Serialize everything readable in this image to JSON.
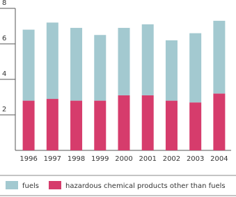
{
  "chart_data": {
    "type": "stacked_bar",
    "categories": [
      "1996",
      "1997",
      "1998",
      "1999",
      "2000",
      "2001",
      "2002",
      "2003",
      "2004"
    ],
    "series": [
      {
        "name": "hazardous chemical products other than fuels",
        "color": "#d63c6c",
        "values": [
          2.8,
          2.9,
          2.8,
          2.8,
          3.1,
          3.1,
          2.8,
          2.7,
          3.2
        ]
      },
      {
        "name": "fuels",
        "color": "#a3c9d0",
        "values": [
          4.0,
          4.3,
          4.1,
          3.7,
          3.8,
          4.0,
          3.4,
          3.9,
          4.1
        ]
      }
    ],
    "legend_order": [
      1,
      0
    ],
    "ylim": [
      0,
      8
    ],
    "yticks": [
      2,
      4,
      6,
      8
    ]
  }
}
